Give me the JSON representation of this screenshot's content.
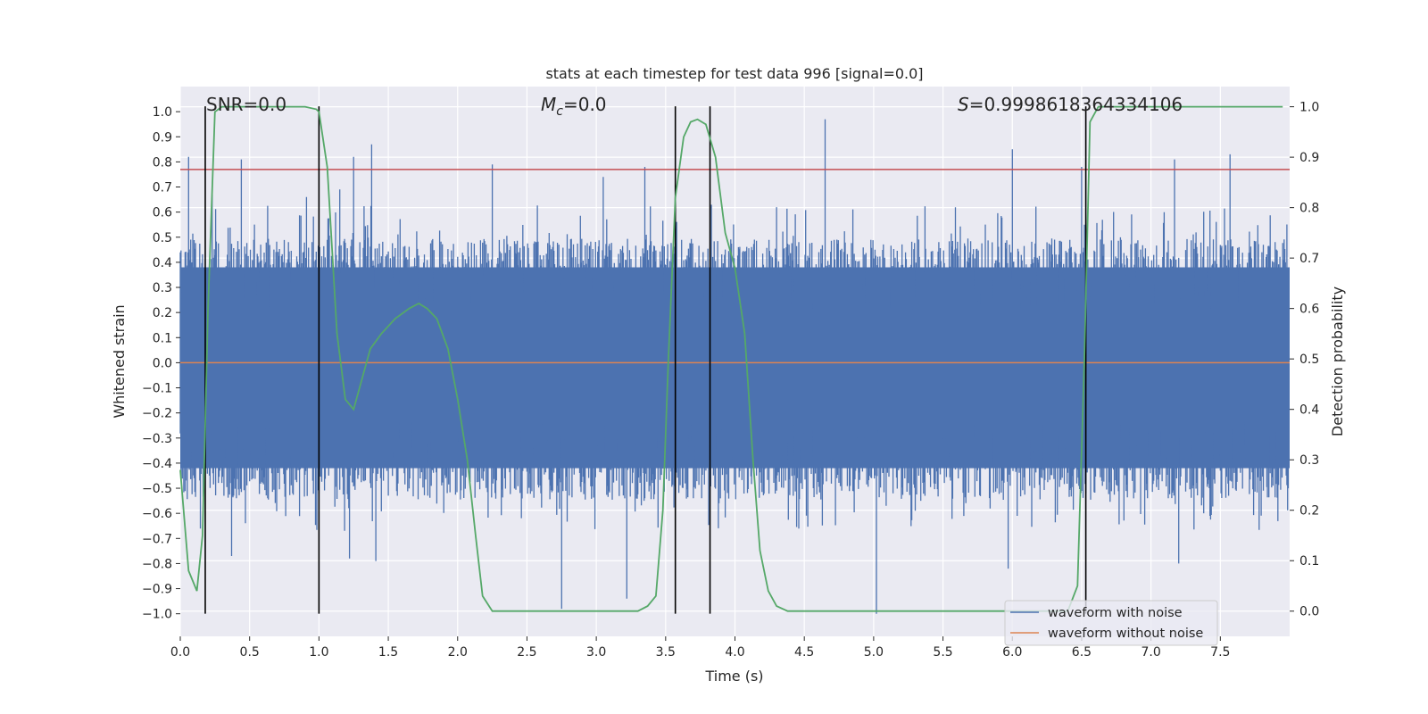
{
  "chart_data": {
    "type": "line",
    "title": "stats at each timestep for test data 996 [signal=0.0]",
    "xlabel": "Time (s)",
    "ylabel": "Whitened strain",
    "ylabel_right": "Detection probability",
    "xlim": [
      0.0,
      8.0
    ],
    "ylim": [
      -1.09,
      1.1
    ],
    "ylim_right": [
      -0.05,
      1.04
    ],
    "x_ticks": [
      0.0,
      0.5,
      1.0,
      1.5,
      2.0,
      2.5,
      3.0,
      3.5,
      4.0,
      4.5,
      5.0,
      5.5,
      6.0,
      6.5,
      7.0,
      7.5
    ],
    "x_tick_labels": [
      "0.0",
      "0.5",
      "1.0",
      "1.5",
      "2.0",
      "2.5",
      "3.0",
      "3.5",
      "4.0",
      "4.5",
      "5.0",
      "5.5",
      "6.0",
      "6.5",
      "7.0",
      "7.5"
    ],
    "y_ticks": [
      -1.0,
      -0.9,
      -0.8,
      -0.7,
      -0.6,
      -0.5,
      -0.4,
      -0.3,
      -0.2,
      -0.1,
      0.0,
      0.1,
      0.2,
      0.3,
      0.4,
      0.5,
      0.6,
      0.7,
      0.8,
      0.9,
      1.0
    ],
    "y_tick_labels": [
      "−1.0",
      "−0.9",
      "−0.8",
      "−0.7",
      "−0.6",
      "−0.5",
      "−0.4",
      "−0.3",
      "−0.2",
      "−0.1",
      "0.0",
      "0.1",
      "0.2",
      "0.3",
      "0.4",
      "0.5",
      "0.6",
      "0.7",
      "0.8",
      "0.9",
      "1.0"
    ],
    "y_ticks_right": [
      0.0,
      0.1,
      0.2,
      0.3,
      0.4,
      0.5,
      0.6,
      0.7,
      0.8,
      0.9,
      1.0
    ],
    "y_tick_labels_right": [
      "0.0",
      "0.1",
      "0.2",
      "0.3",
      "0.4",
      "0.5",
      "0.6",
      "0.7",
      "0.8",
      "0.9",
      "1.0"
    ],
    "annotations": {
      "snr": "SNR=0.0",
      "mc_symbol": "M",
      "mc_sub": "c",
      "mc_value": "=0.0",
      "s_symbol": "S",
      "s_value": "=0.9998618364334106"
    },
    "noise_envelope": {
      "sample_step_s": 0.005,
      "typical_upper": 0.38,
      "typical_lower": -0.42,
      "spikes": [
        {
          "t": 0.06,
          "y": 0.82
        },
        {
          "t": 0.23,
          "y": 0.67
        },
        {
          "t": 0.44,
          "y": 0.81
        },
        {
          "t": 0.91,
          "y": 0.66
        },
        {
          "t": 1.15,
          "y": 0.69
        },
        {
          "t": 1.25,
          "y": 0.82
        },
        {
          "t": 1.38,
          "y": 0.87
        },
        {
          "t": 2.25,
          "y": 0.79
        },
        {
          "t": 3.05,
          "y": 0.74
        },
        {
          "t": 3.35,
          "y": 0.78
        },
        {
          "t": 4.65,
          "y": 0.97
        },
        {
          "t": 6.0,
          "y": 0.85
        },
        {
          "t": 6.5,
          "y": 0.78
        },
        {
          "t": 7.17,
          "y": 0.81
        },
        {
          "t": 7.57,
          "y": 0.83
        },
        {
          "t": 0.37,
          "y": -0.77
        },
        {
          "t": 1.22,
          "y": -0.78
        },
        {
          "t": 1.41,
          "y": -0.79
        },
        {
          "t": 2.75,
          "y": -0.98
        },
        {
          "t": 3.22,
          "y": -0.94
        },
        {
          "t": 5.02,
          "y": -1.0
        },
        {
          "t": 5.97,
          "y": -0.82
        },
        {
          "t": 7.2,
          "y": -0.8
        }
      ]
    },
    "series": [
      {
        "name": "waveform with noise",
        "color": "#4c72b0",
        "note": "dense noise trace, rendered procedurally from noise_envelope"
      },
      {
        "name": "waveform without noise",
        "color": "#dd8452",
        "values": "flat at 0.0"
      },
      {
        "name": "detection probability",
        "color": "#55a868",
        "axis": "right",
        "x": [
          0.0,
          0.06,
          0.12,
          0.16,
          0.2,
          0.25,
          0.3,
          0.4,
          0.5,
          0.7,
          0.9,
          0.98,
          1.0,
          1.06,
          1.13,
          1.19,
          1.25,
          1.3,
          1.37,
          1.45,
          1.55,
          1.65,
          1.72,
          1.78,
          1.85,
          1.93,
          2.0,
          2.07,
          2.13,
          2.18,
          2.25,
          2.5,
          3.0,
          3.3,
          3.37,
          3.43,
          3.48,
          3.52,
          3.57,
          3.63,
          3.68,
          3.73,
          3.79,
          3.86,
          3.93,
          4.0,
          4.07,
          4.13,
          4.18,
          4.24,
          4.3,
          4.38,
          4.5,
          5.0,
          6.0,
          6.4,
          6.47,
          6.52,
          6.56,
          6.62,
          7.0,
          7.5,
          7.95
        ],
        "values": [
          0.28,
          0.08,
          0.04,
          0.15,
          0.6,
          0.99,
          1.0,
          1.0,
          1.0,
          1.0,
          1.0,
          0.995,
          0.99,
          0.88,
          0.55,
          0.42,
          0.4,
          0.45,
          0.52,
          0.55,
          0.58,
          0.6,
          0.61,
          0.6,
          0.58,
          0.52,
          0.42,
          0.3,
          0.15,
          0.03,
          0.0,
          0.0,
          0.0,
          0.0,
          0.01,
          0.03,
          0.2,
          0.5,
          0.82,
          0.94,
          0.97,
          0.975,
          0.965,
          0.9,
          0.75,
          0.68,
          0.55,
          0.3,
          0.12,
          0.04,
          0.01,
          0.0,
          0.0,
          0.0,
          0.0,
          0.0,
          0.05,
          0.5,
          0.97,
          1.0,
          1.0,
          1.0,
          1.0
        ]
      }
    ],
    "threshold_line": {
      "value": 0.77,
      "color": "#c44e52",
      "axis": "left"
    },
    "vertical_markers": {
      "x": [
        0.18,
        1.0,
        3.57,
        3.82,
        6.53
      ],
      "from": -1.0,
      "to": 1.0,
      "color": "#000000"
    },
    "legend": {
      "placement": "lower-right",
      "entries": [
        {
          "label": "waveform with noise",
          "color": "#4c72b0"
        },
        {
          "label": "waveform without noise",
          "color": "#dd8452"
        }
      ]
    },
    "grid": true,
    "background": "#eaeaf2"
  }
}
